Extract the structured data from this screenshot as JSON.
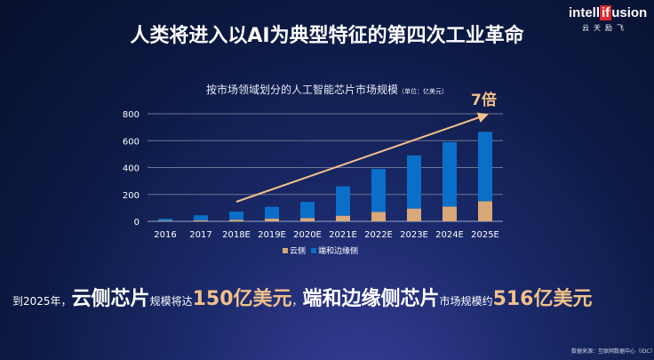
{
  "slide": {
    "title": "人类将进入以AI为典型特征的第四次工业革命",
    "logo": {
      "a": "intell",
      "b": "if",
      "c": "usion",
      "sub": "云天励飞"
    },
    "bottom": {
      "p1": "到2025年，",
      "p2": "云侧芯片",
      "p3": "规模将达",
      "p4": "150亿美元",
      "p5": "，",
      "p6": "端和边缘侧芯片",
      "p7": "市场规模约",
      "p8": "516亿美元"
    },
    "source": "数据来源：互联网数据中心（IDC）"
  },
  "chart_data": {
    "type": "bar",
    "stacked": true,
    "title": "按市场领域划分的人工智能芯片市场规模",
    "unit": "（单位：亿美元）",
    "categories": [
      "2016",
      "2017",
      "2018E",
      "2019E",
      "2020E",
      "2021E",
      "2022E",
      "2023E",
      "2024E",
      "2025E"
    ],
    "series": [
      {
        "name": "云侧",
        "color": "#d9a878",
        "values": [
          5,
          8,
          12,
          20,
          25,
          42,
          70,
          95,
          110,
          150
        ]
      },
      {
        "name": "端和边缘侧",
        "color": "#0a6fc8",
        "values": [
          15,
          37,
          60,
          88,
          120,
          218,
          320,
          395,
          480,
          516
        ]
      }
    ],
    "ylim": [
      0,
      800
    ],
    "yticks": [
      0,
      200,
      400,
      600,
      800
    ],
    "grid": true,
    "legend": "bottom",
    "annotation": "7倍",
    "annotation_color": "#f2c08a"
  }
}
